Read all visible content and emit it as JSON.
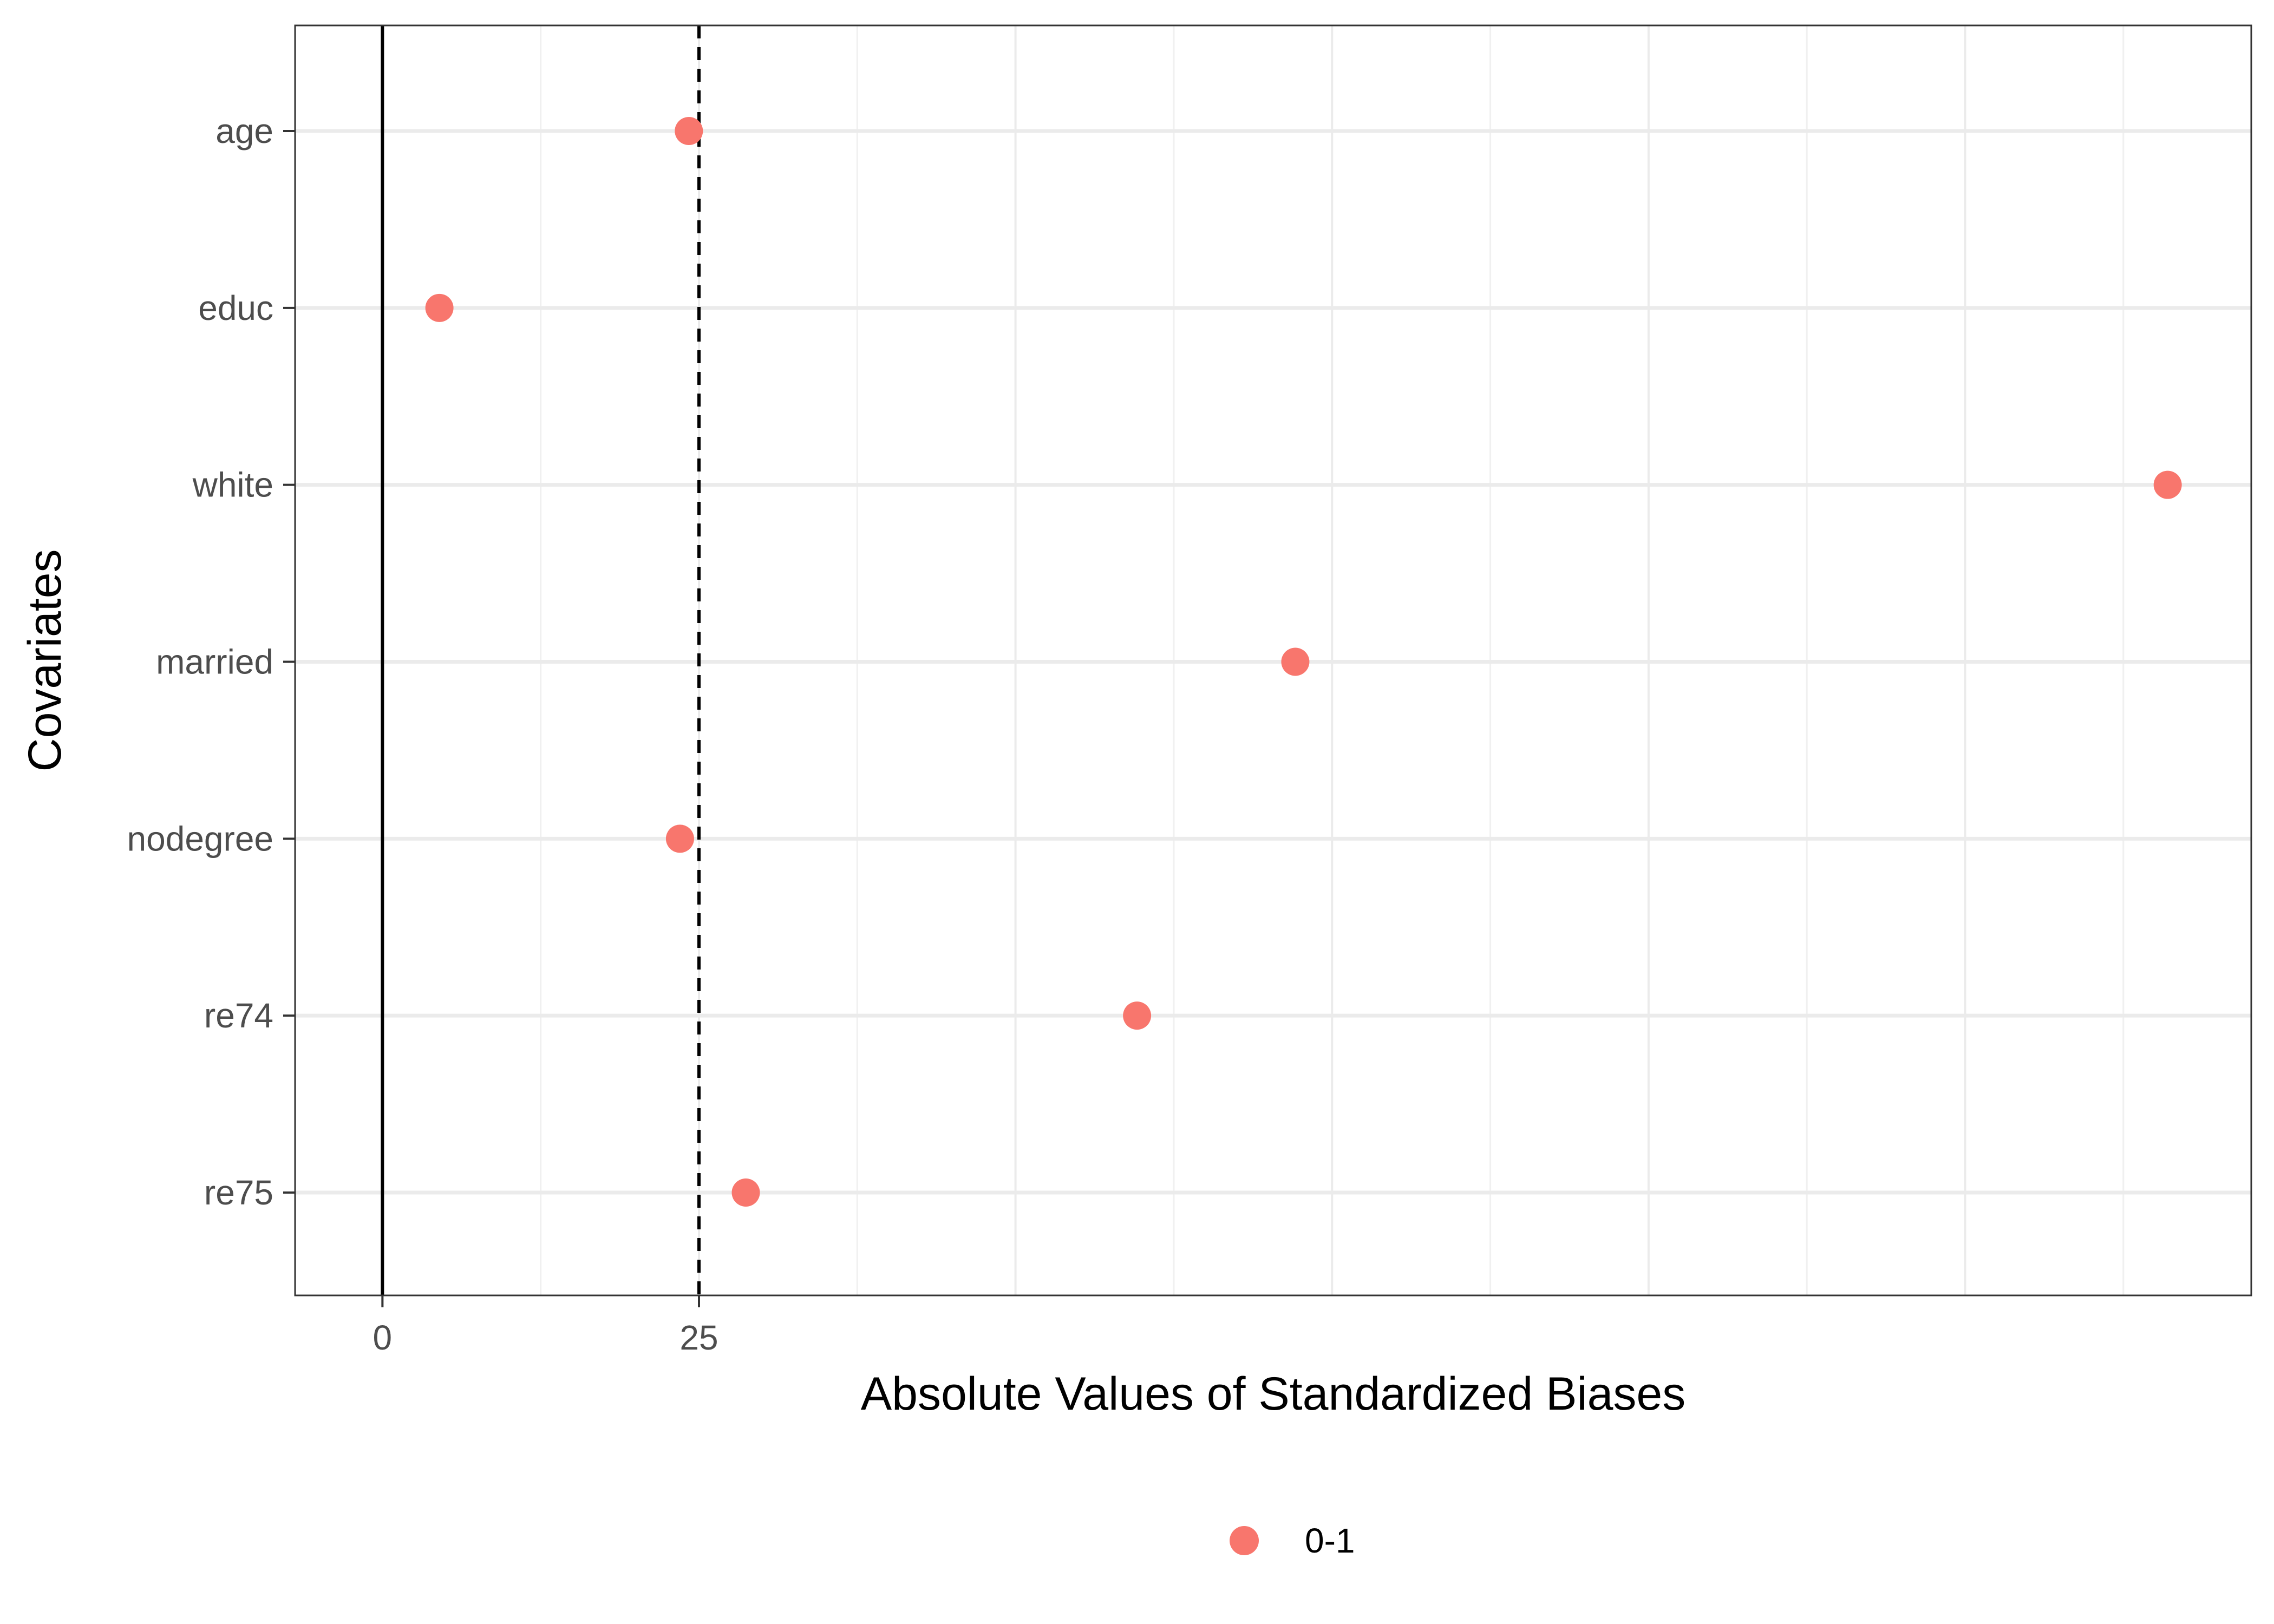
{
  "chart_data": {
    "type": "scatter",
    "xlabel": "Absolute Values of Standardized Biases",
    "ylabel": "Covariates",
    "categories": [
      "age",
      "educ",
      "white",
      "married",
      "nodegree",
      "re74",
      "re75"
    ],
    "series": [
      {
        "name": "0-1",
        "color": "#F8766D",
        "values": [
          24.2,
          4.5,
          141.0,
          72.1,
          23.5,
          59.6,
          28.7
        ]
      }
    ],
    "xlim": [
      -6.9,
      147.6
    ],
    "x_ticks": [
      0,
      25
    ],
    "x_tick_labels": [
      "0",
      "25"
    ],
    "reference_lines": [
      {
        "x": 0,
        "style": "solid"
      },
      {
        "x": 25,
        "style": "dashed"
      }
    ],
    "grid": true,
    "legend_position": "bottom"
  }
}
